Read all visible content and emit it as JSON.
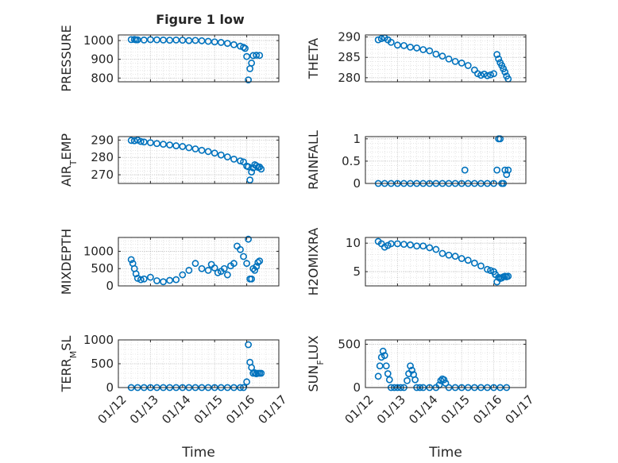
{
  "figure": {
    "title": "Figure 1 low",
    "marker_color": "#0072BD",
    "background": "#ffffff"
  },
  "chart_data": [
    {
      "type": "scatter",
      "title": "Figure 1 low",
      "xlabel": "",
      "ylabel": "PRESSURE",
      "xlim": [
        "01/12",
        "01/17"
      ],
      "ylim": [
        780,
        1030
      ],
      "yticks": [
        800,
        900,
        1000
      ],
      "xticks": [
        "01/12",
        "01/13",
        "01/14",
        "01/15",
        "01/16",
        "01/17"
      ],
      "show_xtick_labels": false,
      "grid": "major+minor dotted",
      "x": [
        0.4,
        0.5,
        0.55,
        0.6,
        0.8,
        1.0,
        1.2,
        1.4,
        1.6,
        1.8,
        2.0,
        2.2,
        2.4,
        2.6,
        2.8,
        3.0,
        3.2,
        3.4,
        3.6,
        3.8,
        3.9,
        3.95,
        4.0,
        4.05,
        4.1,
        4.15,
        4.2,
        4.3,
        4.4
      ],
      "y": [
        1005,
        1006,
        1004,
        1004,
        1003,
        1005,
        1004,
        1003,
        1002,
        1003,
        1002,
        1000,
        1001,
        999,
        996,
        993,
        990,
        985,
        978,
        970,
        964,
        958,
        915,
        790,
        850,
        880,
        920,
        922,
        921
      ]
    },
    {
      "type": "scatter",
      "title": "",
      "xlabel": "",
      "ylabel": "THETA",
      "xlim": [
        "01/12",
        "01/17"
      ],
      "ylim": [
        279,
        290.5
      ],
      "yticks": [
        280,
        285,
        290
      ],
      "xticks": [
        "01/12",
        "01/13",
        "01/14",
        "01/15",
        "01/16",
        "01/17"
      ],
      "show_xtick_labels": false,
      "grid": "major+minor dotted",
      "x": [
        0.4,
        0.5,
        0.6,
        0.7,
        0.8,
        1.0,
        1.2,
        1.4,
        1.6,
        1.8,
        2.0,
        2.2,
        2.4,
        2.6,
        2.8,
        3.0,
        3.2,
        3.4,
        3.5,
        3.6,
        3.7,
        3.8,
        3.9,
        4.0,
        4.1,
        4.15,
        4.2,
        4.25,
        4.3,
        4.35,
        4.4,
        4.45
      ],
      "y": [
        289.3,
        289.6,
        289.8,
        289.3,
        288.7,
        288.0,
        287.9,
        287.5,
        287.3,
        286.9,
        286.6,
        285.8,
        285.3,
        284.6,
        284.0,
        283.6,
        283.0,
        281.9,
        281.0,
        280.6,
        280.9,
        280.5,
        280.7,
        281.0,
        285.7,
        284.6,
        283.7,
        283.0,
        282.2,
        281.4,
        280.4,
        279.7
      ]
    },
    {
      "type": "scatter",
      "title": "",
      "xlabel": "",
      "ylabel": "AIR_TEMP",
      "xlim": [
        "01/12",
        "01/17"
      ],
      "ylim": [
        265,
        292
      ],
      "yticks": [
        270,
        280,
        290
      ],
      "xticks": [
        "01/12",
        "01/13",
        "01/14",
        "01/15",
        "01/16",
        "01/17"
      ],
      "show_xtick_labels": false,
      "grid": "major+minor dotted",
      "x": [
        0.4,
        0.5,
        0.6,
        0.7,
        0.8,
        1.0,
        1.2,
        1.4,
        1.6,
        1.8,
        2.0,
        2.2,
        2.4,
        2.6,
        2.8,
        3.0,
        3.2,
        3.4,
        3.6,
        3.8,
        3.9,
        4.0,
        4.05,
        4.1,
        4.15,
        4.2,
        4.25,
        4.3,
        4.35,
        4.4,
        4.45
      ],
      "y": [
        289.8,
        289.6,
        290.0,
        289.2,
        288.9,
        288.5,
        288.0,
        287.6,
        287.2,
        286.7,
        286.3,
        285.6,
        284.9,
        284.1,
        283.4,
        282.5,
        281.4,
        280.3,
        279.0,
        278.0,
        277.4,
        275.0,
        274.6,
        267.0,
        271.6,
        274.0,
        275.8,
        275.2,
        274.3,
        274.5,
        273.3
      ]
    },
    {
      "type": "scatter",
      "title": "",
      "xlabel": "",
      "ylabel": "RAINFALL",
      "xlim": [
        "01/12",
        "01/17"
      ],
      "ylim": [
        0,
        1.05
      ],
      "yticks": [
        0,
        0.5,
        1
      ],
      "xticks": [
        "01/12",
        "01/13",
        "01/14",
        "01/15",
        "01/16",
        "01/17"
      ],
      "show_xtick_labels": false,
      "grid": "major+minor dotted",
      "x": [
        0.4,
        0.6,
        0.8,
        1.0,
        1.2,
        1.4,
        1.6,
        1.8,
        2.0,
        2.2,
        2.4,
        2.6,
        2.8,
        3.0,
        3.1,
        3.2,
        3.4,
        3.6,
        3.8,
        4.0,
        4.1,
        4.15,
        4.2,
        4.25,
        4.3,
        4.35,
        4.4,
        4.45
      ],
      "y": [
        0,
        0,
        0,
        0,
        0,
        0,
        0,
        0,
        0,
        0,
        0,
        0,
        0,
        0,
        0.3,
        0,
        0,
        0,
        0,
        0,
        0.3,
        1.0,
        1.0,
        0,
        0,
        0.3,
        0.2,
        0.3
      ]
    },
    {
      "type": "scatter",
      "title": "",
      "xlabel": "",
      "ylabel": "MIXDEPTH",
      "xlim": [
        "01/12",
        "01/17"
      ],
      "ylim": [
        0,
        1400
      ],
      "yticks": [
        0,
        500,
        1000
      ],
      "xticks": [
        "01/12",
        "01/13",
        "01/14",
        "01/15",
        "01/16",
        "01/17"
      ],
      "show_xtick_labels": false,
      "grid": "major+minor dotted",
      "x": [
        0.4,
        0.45,
        0.5,
        0.55,
        0.6,
        0.7,
        0.8,
        1.0,
        1.2,
        1.4,
        1.6,
        1.8,
        2.0,
        2.2,
        2.4,
        2.6,
        2.8,
        2.9,
        3.0,
        3.1,
        3.2,
        3.3,
        3.4,
        3.5,
        3.6,
        3.7,
        3.8,
        3.9,
        4.0,
        4.05,
        4.1,
        4.15,
        4.2,
        4.25,
        4.3,
        4.35,
        4.4
      ],
      "y": [
        760,
        650,
        500,
        350,
        220,
        180,
        200,
        250,
        150,
        120,
        160,
        180,
        320,
        450,
        650,
        500,
        450,
        620,
        520,
        380,
        420,
        500,
        320,
        580,
        650,
        1150,
        1050,
        850,
        650,
        1350,
        200,
        200,
        500,
        450,
        560,
        680,
        720
      ]
    },
    {
      "type": "scatter",
      "title": "",
      "xlabel": "",
      "ylabel": "H2OMIXRA",
      "xlim": [
        "01/12",
        "01/17"
      ],
      "ylim": [
        2.5,
        11
      ],
      "yticks": [
        5,
        10
      ],
      "xticks": [
        "01/12",
        "01/13",
        "01/14",
        "01/15",
        "01/16",
        "01/17"
      ],
      "show_xtick_labels": false,
      "grid": "major+minor dotted",
      "x": [
        0.4,
        0.5,
        0.6,
        0.7,
        0.8,
        1.0,
        1.2,
        1.4,
        1.6,
        1.8,
        2.0,
        2.2,
        2.4,
        2.6,
        2.8,
        3.0,
        3.2,
        3.4,
        3.6,
        3.8,
        3.9,
        4.0,
        4.05,
        4.1,
        4.15,
        4.2,
        4.25,
        4.3,
        4.35,
        4.4,
        4.45
      ],
      "y": [
        10.3,
        9.9,
        9.3,
        9.6,
        9.9,
        9.9,
        9.8,
        9.7,
        9.5,
        9.5,
        9.2,
        8.9,
        8.2,
        7.9,
        7.7,
        7.3,
        7.0,
        6.5,
        6.0,
        5.4,
        5.2,
        5.0,
        4.5,
        3.2,
        4.0,
        3.8,
        3.9,
        4.1,
        4.2,
        4.1,
        4.2
      ]
    },
    {
      "type": "scatter",
      "title": "",
      "xlabel": "Time",
      "ylabel": "TERR_MSL",
      "xlim": [
        "01/12",
        "01/17"
      ],
      "ylim": [
        0,
        1000
      ],
      "yticks": [
        0,
        500,
        1000
      ],
      "xticks": [
        "01/12",
        "01/13",
        "01/14",
        "01/15",
        "01/16",
        "01/17"
      ],
      "show_xtick_labels": true,
      "grid": "major+minor dotted",
      "x": [
        0.4,
        0.6,
        0.8,
        1.0,
        1.2,
        1.4,
        1.6,
        1.8,
        2.0,
        2.2,
        2.4,
        2.6,
        2.8,
        3.0,
        3.2,
        3.4,
        3.6,
        3.8,
        3.9,
        4.0,
        4.05,
        4.1,
        4.15,
        4.2,
        4.25,
        4.3,
        4.35,
        4.4,
        4.45
      ],
      "y": [
        0,
        0,
        0,
        0,
        0,
        0,
        0,
        0,
        0,
        0,
        0,
        0,
        0,
        0,
        0,
        0,
        0,
        0,
        0,
        120,
        900,
        530,
        420,
        300,
        310,
        290,
        300,
        300,
        300
      ]
    },
    {
      "type": "scatter",
      "title": "",
      "xlabel": "Time",
      "ylabel": "SUN_FLUX",
      "xlim": [
        "01/12",
        "01/17"
      ],
      "ylim": [
        0,
        550
      ],
      "yticks": [
        0,
        500
      ],
      "xticks": [
        "01/12",
        "01/13",
        "01/14",
        "01/15",
        "01/16",
        "01/17"
      ],
      "show_xtick_labels": true,
      "grid": "major+minor dotted",
      "x": [
        0.4,
        0.45,
        0.5,
        0.55,
        0.6,
        0.65,
        0.7,
        0.75,
        0.8,
        0.9,
        1.0,
        1.1,
        1.2,
        1.3,
        1.35,
        1.4,
        1.45,
        1.5,
        1.55,
        1.6,
        1.7,
        1.8,
        2.0,
        2.2,
        2.3,
        2.35,
        2.4,
        2.45,
        2.5,
        2.6,
        2.8,
        3.0,
        3.2,
        3.4,
        3.6,
        3.8,
        4.0,
        4.2,
        4.4
      ],
      "y": [
        130,
        250,
        350,
        420,
        370,
        250,
        160,
        90,
        0,
        0,
        0,
        0,
        0,
        80,
        160,
        250,
        200,
        150,
        90,
        0,
        0,
        0,
        0,
        0,
        30,
        80,
        100,
        90,
        50,
        0,
        0,
        0,
        0,
        0,
        0,
        0,
        0,
        0,
        0
      ]
    }
  ]
}
